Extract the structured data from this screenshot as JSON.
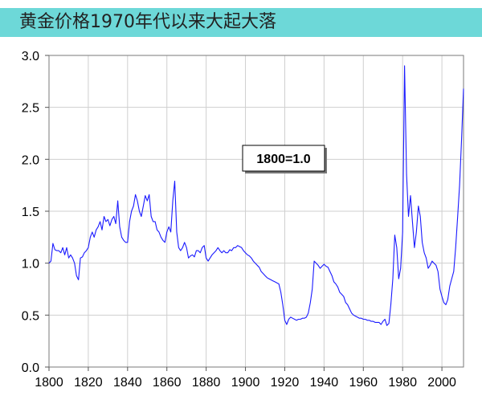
{
  "title_bar": {
    "text": "黄金价格1970年代以来大起大落",
    "color": "#6dd8d8"
  },
  "chart_data": {
    "type": "line",
    "title": "黄金价格1970年代以来大起大落",
    "xlabel": "",
    "ylabel": "",
    "xlim": [
      1800,
      2011
    ],
    "ylim": [
      0.0,
      3.0
    ],
    "x_ticks": [
      1800,
      1820,
      1840,
      1860,
      1880,
      1900,
      1920,
      1940,
      1960,
      1980,
      2000
    ],
    "y_ticks": [
      0.0,
      0.5,
      1.0,
      1.5,
      2.0,
      2.5,
      3.0
    ],
    "y_tick_labels": [
      "0.0",
      "0.5",
      "1.0",
      "1.5",
      "2.0",
      "2.5",
      "3.0"
    ],
    "grid": true,
    "annotation": "1800=1.0",
    "line_color": "#1a1aff",
    "series": [
      {
        "x": [
          1800,
          1801,
          1802,
          1803,
          1804,
          1805,
          1806,
          1807,
          1808,
          1809,
          1810,
          1811,
          1812,
          1813,
          1814,
          1815,
          1816,
          1817,
          1818,
          1819,
          1820,
          1821,
          1822,
          1823,
          1824,
          1825,
          1826,
          1827,
          1828,
          1829,
          1830,
          1831,
          1832,
          1833,
          1834,
          1835,
          1836,
          1837,
          1838,
          1839,
          1840,
          1841,
          1842,
          1843,
          1844,
          1845,
          1846,
          1847,
          1848,
          1849,
          1850,
          1851,
          1852,
          1853,
          1854,
          1855,
          1856,
          1857,
          1858,
          1859,
          1860,
          1861,
          1862,
          1863,
          1864,
          1865,
          1866,
          1867,
          1868,
          1869,
          1870,
          1871,
          1872,
          1873,
          1874,
          1875,
          1876,
          1877,
          1878,
          1879,
          1880,
          1881,
          1882,
          1883,
          1884,
          1885,
          1886,
          1887,
          1888,
          1889,
          1890,
          1891,
          1892,
          1893,
          1894,
          1895,
          1896,
          1897,
          1898,
          1899,
          1900,
          1901,
          1902,
          1903,
          1904,
          1905,
          1906,
          1907,
          1908,
          1909,
          1910,
          1911,
          1912,
          1913,
          1914,
          1915,
          1916,
          1917,
          1918,
          1919,
          1920,
          1921,
          1922,
          1923,
          1924,
          1925,
          1926,
          1927,
          1928,
          1929,
          1930,
          1931,
          1932,
          1933,
          1934,
          1935,
          1936,
          1937,
          1938,
          1939,
          1940,
          1941,
          1942,
          1943,
          1944,
          1945,
          1946,
          1947,
          1948,
          1949,
          1950,
          1951,
          1952,
          1953,
          1954,
          1955,
          1956,
          1957,
          1958,
          1959,
          1960,
          1961,
          1962,
          1963,
          1964,
          1965,
          1966,
          1967,
          1968,
          1969,
          1970,
          1971,
          1972,
          1973,
          1974,
          1975,
          1976,
          1977,
          1978,
          1979,
          1980,
          1981,
          1982,
          1983,
          1984,
          1985,
          1986,
          1987,
          1988,
          1989,
          1990,
          1991,
          1992,
          1993,
          1994,
          1995,
          1996,
          1997,
          1998,
          1999,
          2000,
          2001,
          2002,
          2003,
          2004,
          2005,
          2006,
          2007,
          2008,
          2009,
          2010,
          2011
        ],
        "y": [
          1.0,
          1.02,
          1.19,
          1.13,
          1.12,
          1.12,
          1.1,
          1.15,
          1.08,
          1.15,
          1.05,
          1.08,
          1.05,
          1.0,
          0.88,
          0.84,
          1.05,
          1.06,
          1.1,
          1.12,
          1.15,
          1.25,
          1.3,
          1.25,
          1.32,
          1.35,
          1.4,
          1.32,
          1.45,
          1.4,
          1.42,
          1.36,
          1.42,
          1.45,
          1.38,
          1.6,
          1.35,
          1.25,
          1.22,
          1.2,
          1.2,
          1.4,
          1.5,
          1.55,
          1.66,
          1.6,
          1.5,
          1.45,
          1.55,
          1.65,
          1.6,
          1.66,
          1.45,
          1.4,
          1.4,
          1.32,
          1.3,
          1.25,
          1.22,
          1.2,
          1.3,
          1.35,
          1.3,
          1.6,
          1.79,
          1.3,
          1.15,
          1.12,
          1.15,
          1.2,
          1.15,
          1.05,
          1.07,
          1.08,
          1.06,
          1.12,
          1.12,
          1.1,
          1.15,
          1.17,
          1.05,
          1.02,
          1.05,
          1.08,
          1.1,
          1.12,
          1.15,
          1.12,
          1.1,
          1.12,
          1.1,
          1.1,
          1.13,
          1.12,
          1.15,
          1.15,
          1.17,
          1.16,
          1.15,
          1.12,
          1.1,
          1.08,
          1.07,
          1.05,
          1.02,
          1.0,
          0.98,
          0.96,
          0.92,
          0.9,
          0.88,
          0.86,
          0.85,
          0.84,
          0.83,
          0.82,
          0.81,
          0.8,
          0.72,
          0.6,
          0.45,
          0.41,
          0.46,
          0.48,
          0.47,
          0.46,
          0.45,
          0.46,
          0.46,
          0.47,
          0.47,
          0.48,
          0.52,
          0.62,
          0.75,
          1.02,
          1.0,
          0.98,
          0.95,
          0.97,
          0.99,
          0.97,
          0.96,
          0.92,
          0.88,
          0.82,
          0.8,
          0.77,
          0.72,
          0.7,
          0.68,
          0.62,
          0.6,
          0.56,
          0.52,
          0.5,
          0.49,
          0.48,
          0.47,
          0.47,
          0.46,
          0.46,
          0.45,
          0.45,
          0.44,
          0.44,
          0.43,
          0.43,
          0.43,
          0.41,
          0.44,
          0.46,
          0.4,
          0.42,
          0.6,
          0.85,
          1.27,
          1.15,
          0.85,
          0.95,
          1.3,
          2.9,
          1.85,
          1.45,
          1.65,
          1.4,
          1.15,
          1.3,
          1.55,
          1.45,
          1.2,
          1.1,
          1.05,
          0.95,
          0.98,
          1.02,
          1.0,
          0.98,
          0.92,
          0.75,
          0.68,
          0.62,
          0.6,
          0.65,
          0.78,
          0.85,
          0.92,
          1.15,
          1.45,
          1.75,
          2.2,
          2.68
        ]
      }
    ]
  }
}
